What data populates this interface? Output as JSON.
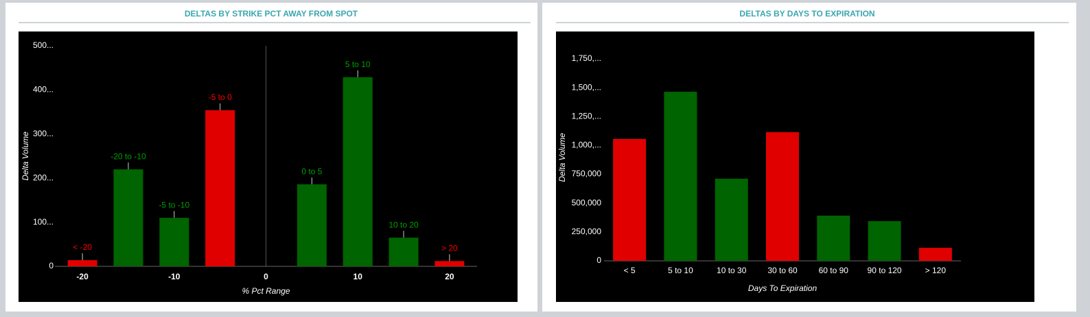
{
  "chart_data": [
    {
      "type": "bar",
      "title": "DELTAS BY STRIKE PCT AWAY FROM SPOT",
      "x_label": "% Pct Range",
      "y_label": "Delta Volume",
      "categories": [
        "< -20",
        "-20 to -10",
        "-5 to -10",
        "-5 to 0",
        "0 to 5",
        "5 to 10",
        "10 to 20",
        "> 20"
      ],
      "x": [
        -20,
        -15,
        -10,
        -5,
        5,
        10,
        15,
        20
      ],
      "values": [
        14000,
        220000,
        110000,
        354000,
        186000,
        429000,
        65000,
        12000
      ],
      "colors": [
        "#e00000",
        "#006400",
        "#006400",
        "#e00000",
        "#006400",
        "#006400",
        "#006400",
        "#e00000"
      ],
      "xlim": [
        -23,
        23
      ],
      "xticks": [
        -20,
        -10,
        0,
        10,
        20
      ],
      "ylim": [
        0,
        500000
      ],
      "yticks": [
        0,
        {
          "value": 100000,
          "label": "100..."
        },
        {
          "value": 200000,
          "label": "200..."
        },
        {
          "value": 300000,
          "label": "300..."
        },
        {
          "value": 400000,
          "label": "400..."
        },
        {
          "value": 500000,
          "label": "500..."
        }
      ]
    },
    {
      "type": "bar",
      "title": "DELTAS BY DAYS TO EXPIRATION",
      "x_label": "Days To Expiration",
      "y_label": "Delta Volume",
      "categories": [
        "< 5",
        "5 to 10",
        "10 to 30",
        "30 to 60",
        "60 to 90",
        "90 to 120",
        "> 120"
      ],
      "values": [
        1056000,
        1465000,
        712000,
        1115000,
        392000,
        344000,
        113000
      ],
      "colors": [
        "#e00000",
        "#006400",
        "#006400",
        "#e00000",
        "#006400",
        "#006400",
        "#e00000"
      ],
      "ylim": [
        0,
        1750000
      ],
      "yticks": [
        0,
        {
          "value": 250000,
          "label": "250,000"
        },
        {
          "value": 500000,
          "label": "500,000"
        },
        {
          "value": 750000,
          "label": "750,000"
        },
        {
          "value": 1000000,
          "label": "1,000,..."
        },
        {
          "value": 1250000,
          "label": "1,250,..."
        },
        {
          "value": 1500000,
          "label": "1,500,..."
        },
        {
          "value": 1750000,
          "label": "1,750,..."
        }
      ]
    }
  ]
}
